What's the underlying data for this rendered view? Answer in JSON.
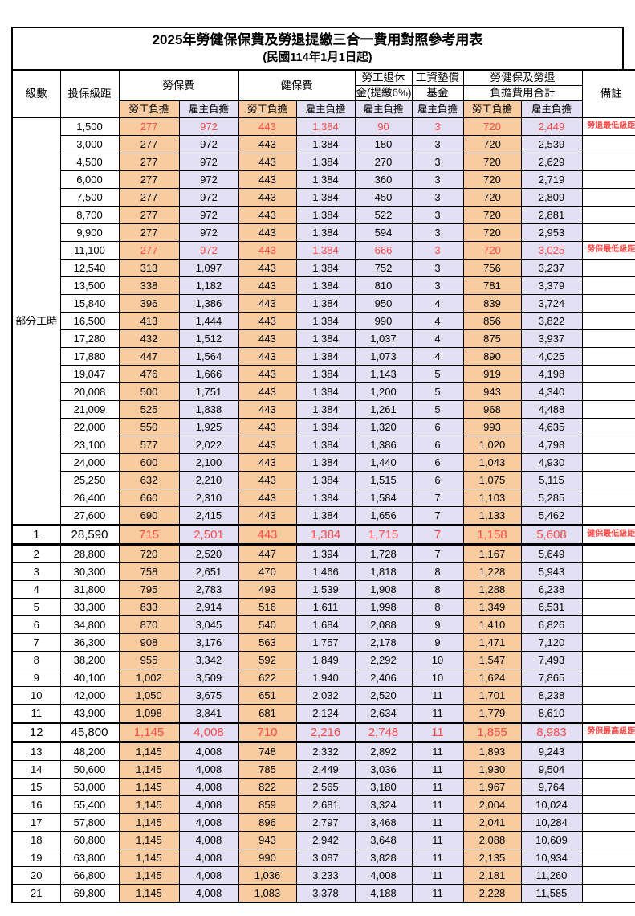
{
  "title": "2025年勞健保保費及勞退提繳三合一費用對照參考用表",
  "subtitle": "(民國114年1月1日起)",
  "colors": {
    "worker_bg": "#F8CBA0",
    "employer_bg": "#E2E0F2",
    "highlight_red": "#FF4A4A",
    "grid": "#000000"
  },
  "header": {
    "level": "級數",
    "bracket": "投保級距",
    "labor_insurance": "勞保費",
    "health_insurance": "健保費",
    "pension_line1": "勞工退休",
    "pension_line2": "金(提繳6%)",
    "wage_fund_line1": "工資墊償",
    "wage_fund_line2": "基金",
    "total_line1": "勞健保及勞退",
    "total_line2": "負擔費用合計",
    "note": "備註",
    "worker": "勞工負擔",
    "employer": "雇主負擔"
  },
  "part_time_label": "部分工時",
  "part_time_span": 23,
  "rows": [
    {
      "level": "",
      "bracket": "1,500",
      "cells": [
        "277",
        "972",
        "443",
        "1,384",
        "90",
        "3",
        "720",
        "2,449"
      ],
      "note": "勞退最低級距",
      "style": "red"
    },
    {
      "level": "",
      "bracket": "3,000",
      "cells": [
        "277",
        "972",
        "443",
        "1,384",
        "180",
        "3",
        "720",
        "2,539"
      ],
      "note": "",
      "style": ""
    },
    {
      "level": "",
      "bracket": "4,500",
      "cells": [
        "277",
        "972",
        "443",
        "1,384",
        "270",
        "3",
        "720",
        "2,629"
      ],
      "note": "",
      "style": ""
    },
    {
      "level": "",
      "bracket": "6,000",
      "cells": [
        "277",
        "972",
        "443",
        "1,384",
        "360",
        "3",
        "720",
        "2,719"
      ],
      "note": "",
      "style": ""
    },
    {
      "level": "",
      "bracket": "7,500",
      "cells": [
        "277",
        "972",
        "443",
        "1,384",
        "450",
        "3",
        "720",
        "2,809"
      ],
      "note": "",
      "style": ""
    },
    {
      "level": "",
      "bracket": "8,700",
      "cells": [
        "277",
        "972",
        "443",
        "1,384",
        "522",
        "3",
        "720",
        "2,881"
      ],
      "note": "",
      "style": ""
    },
    {
      "level": "",
      "bracket": "9,900",
      "cells": [
        "277",
        "972",
        "443",
        "1,384",
        "594",
        "3",
        "720",
        "2,953"
      ],
      "note": "",
      "style": ""
    },
    {
      "level": "",
      "bracket": "11,100",
      "cells": [
        "277",
        "972",
        "443",
        "1,384",
        "666",
        "3",
        "720",
        "3,025"
      ],
      "note": "勞保最低級距",
      "style": "red"
    },
    {
      "level": "",
      "bracket": "12,540",
      "cells": [
        "313",
        "1,097",
        "443",
        "1,384",
        "752",
        "3",
        "756",
        "3,237"
      ],
      "note": "",
      "style": ""
    },
    {
      "level": "",
      "bracket": "13,500",
      "cells": [
        "338",
        "1,182",
        "443",
        "1,384",
        "810",
        "3",
        "781",
        "3,379"
      ],
      "note": "",
      "style": ""
    },
    {
      "level": "",
      "bracket": "15,840",
      "cells": [
        "396",
        "1,386",
        "443",
        "1,384",
        "950",
        "4",
        "839",
        "3,724"
      ],
      "note": "",
      "style": ""
    },
    {
      "level": "",
      "bracket": "16,500",
      "cells": [
        "413",
        "1,444",
        "443",
        "1,384",
        "990",
        "4",
        "856",
        "3,822"
      ],
      "note": "",
      "style": ""
    },
    {
      "level": "",
      "bracket": "17,280",
      "cells": [
        "432",
        "1,512",
        "443",
        "1,384",
        "1,037",
        "4",
        "875",
        "3,937"
      ],
      "note": "",
      "style": ""
    },
    {
      "level": "",
      "bracket": "17,880",
      "cells": [
        "447",
        "1,564",
        "443",
        "1,384",
        "1,073",
        "4",
        "890",
        "4,025"
      ],
      "note": "",
      "style": ""
    },
    {
      "level": "",
      "bracket": "19,047",
      "cells": [
        "476",
        "1,666",
        "443",
        "1,384",
        "1,143",
        "5",
        "919",
        "4,198"
      ],
      "note": "",
      "style": ""
    },
    {
      "level": "",
      "bracket": "20,008",
      "cells": [
        "500",
        "1,751",
        "443",
        "1,384",
        "1,200",
        "5",
        "943",
        "4,340"
      ],
      "note": "",
      "style": ""
    },
    {
      "level": "",
      "bracket": "21,009",
      "cells": [
        "525",
        "1,838",
        "443",
        "1,384",
        "1,261",
        "5",
        "968",
        "4,488"
      ],
      "note": "",
      "style": ""
    },
    {
      "level": "",
      "bracket": "22,000",
      "cells": [
        "550",
        "1,925",
        "443",
        "1,384",
        "1,320",
        "6",
        "993",
        "4,635"
      ],
      "note": "",
      "style": ""
    },
    {
      "level": "",
      "bracket": "23,100",
      "cells": [
        "577",
        "2,022",
        "443",
        "1,384",
        "1,386",
        "6",
        "1,020",
        "4,798"
      ],
      "note": "",
      "style": ""
    },
    {
      "level": "",
      "bracket": "24,000",
      "cells": [
        "600",
        "2,100",
        "443",
        "1,384",
        "1,440",
        "6",
        "1,043",
        "4,930"
      ],
      "note": "",
      "style": ""
    },
    {
      "level": "",
      "bracket": "25,250",
      "cells": [
        "632",
        "2,210",
        "443",
        "1,384",
        "1,515",
        "6",
        "1,075",
        "5,115"
      ],
      "note": "",
      "style": ""
    },
    {
      "level": "",
      "bracket": "26,400",
      "cells": [
        "660",
        "2,310",
        "443",
        "1,384",
        "1,584",
        "7",
        "1,103",
        "5,285"
      ],
      "note": "",
      "style": ""
    },
    {
      "level": "",
      "bracket": "27,600",
      "cells": [
        "690",
        "2,415",
        "443",
        "1,384",
        "1,656",
        "7",
        "1,133",
        "5,462"
      ],
      "note": "",
      "style": ""
    },
    {
      "level": "1",
      "bracket": "28,590",
      "cells": [
        "715",
        "2,501",
        "443",
        "1,384",
        "1,715",
        "7",
        "1,158",
        "5,608"
      ],
      "note": "健保最低級距",
      "style": "red big"
    },
    {
      "level": "2",
      "bracket": "28,800",
      "cells": [
        "720",
        "2,520",
        "447",
        "1,394",
        "1,728",
        "7",
        "1,167",
        "5,649"
      ],
      "note": "",
      "style": ""
    },
    {
      "level": "3",
      "bracket": "30,300",
      "cells": [
        "758",
        "2,651",
        "470",
        "1,466",
        "1,818",
        "8",
        "1,228",
        "5,943"
      ],
      "note": "",
      "style": ""
    },
    {
      "level": "4",
      "bracket": "31,800",
      "cells": [
        "795",
        "2,783",
        "493",
        "1,539",
        "1,908",
        "8",
        "1,288",
        "6,238"
      ],
      "note": "",
      "style": ""
    },
    {
      "level": "5",
      "bracket": "33,300",
      "cells": [
        "833",
        "2,914",
        "516",
        "1,611",
        "1,998",
        "8",
        "1,349",
        "6,531"
      ],
      "note": "",
      "style": ""
    },
    {
      "level": "6",
      "bracket": "34,800",
      "cells": [
        "870",
        "3,045",
        "540",
        "1,684",
        "2,088",
        "9",
        "1,410",
        "6,826"
      ],
      "note": "",
      "style": ""
    },
    {
      "level": "7",
      "bracket": "36,300",
      "cells": [
        "908",
        "3,176",
        "563",
        "1,757",
        "2,178",
        "9",
        "1,471",
        "7,120"
      ],
      "note": "",
      "style": ""
    },
    {
      "level": "8",
      "bracket": "38,200",
      "cells": [
        "955",
        "3,342",
        "592",
        "1,849",
        "2,292",
        "10",
        "1,547",
        "7,493"
      ],
      "note": "",
      "style": ""
    },
    {
      "level": "9",
      "bracket": "40,100",
      "cells": [
        "1,002",
        "3,509",
        "622",
        "1,940",
        "2,406",
        "10",
        "1,624",
        "7,865"
      ],
      "note": "",
      "style": ""
    },
    {
      "level": "10",
      "bracket": "42,000",
      "cells": [
        "1,050",
        "3,675",
        "651",
        "2,032",
        "2,520",
        "11",
        "1,701",
        "8,238"
      ],
      "note": "",
      "style": ""
    },
    {
      "level": "11",
      "bracket": "43,900",
      "cells": [
        "1,098",
        "3,841",
        "681",
        "2,124",
        "2,634",
        "11",
        "1,779",
        "8,610"
      ],
      "note": "",
      "style": ""
    },
    {
      "level": "12",
      "bracket": "45,800",
      "cells": [
        "1,145",
        "4,008",
        "710",
        "2,216",
        "2,748",
        "11",
        "1,855",
        "8,983"
      ],
      "note": "勞保最高級距",
      "style": "red big"
    },
    {
      "level": "13",
      "bracket": "48,200",
      "cells": [
        "1,145",
        "4,008",
        "748",
        "2,332",
        "2,892",
        "11",
        "1,893",
        "9,243"
      ],
      "note": "",
      "style": ""
    },
    {
      "level": "14",
      "bracket": "50,600",
      "cells": [
        "1,145",
        "4,008",
        "785",
        "2,449",
        "3,036",
        "11",
        "1,930",
        "9,504"
      ],
      "note": "",
      "style": ""
    },
    {
      "level": "15",
      "bracket": "53,000",
      "cells": [
        "1,145",
        "4,008",
        "822",
        "2,565",
        "3,180",
        "11",
        "1,967",
        "9,764"
      ],
      "note": "",
      "style": ""
    },
    {
      "level": "16",
      "bracket": "55,400",
      "cells": [
        "1,145",
        "4,008",
        "859",
        "2,681",
        "3,324",
        "11",
        "2,004",
        "10,024"
      ],
      "note": "",
      "style": ""
    },
    {
      "level": "17",
      "bracket": "57,800",
      "cells": [
        "1,145",
        "4,008",
        "896",
        "2,797",
        "3,468",
        "11",
        "2,041",
        "10,284"
      ],
      "note": "",
      "style": ""
    },
    {
      "level": "18",
      "bracket": "60,800",
      "cells": [
        "1,145",
        "4,008",
        "943",
        "2,942",
        "3,648",
        "11",
        "2,088",
        "10,609"
      ],
      "note": "",
      "style": ""
    },
    {
      "level": "19",
      "bracket": "63,800",
      "cells": [
        "1,145",
        "4,008",
        "990",
        "3,087",
        "3,828",
        "11",
        "2,135",
        "10,934"
      ],
      "note": "",
      "style": ""
    },
    {
      "level": "20",
      "bracket": "66,800",
      "cells": [
        "1,145",
        "4,008",
        "1,036",
        "3,233",
        "4,008",
        "11",
        "2,181",
        "11,260"
      ],
      "note": "",
      "style": ""
    },
    {
      "level": "21",
      "bracket": "69,800",
      "cells": [
        "1,145",
        "4,008",
        "1,083",
        "3,378",
        "4,188",
        "11",
        "2,228",
        "11,585"
      ],
      "note": "",
      "style": ""
    }
  ]
}
